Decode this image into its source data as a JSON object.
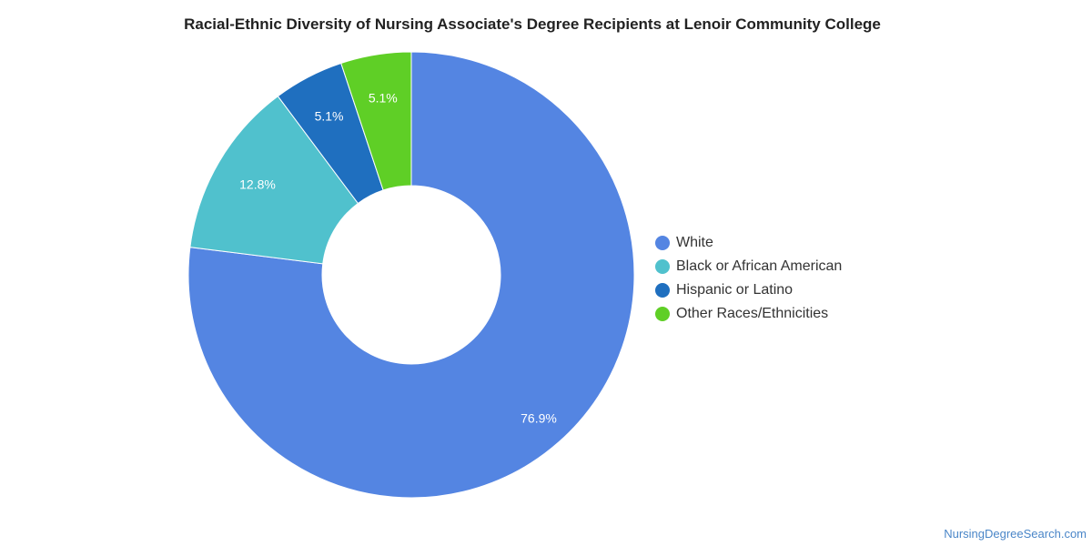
{
  "chart_data": {
    "type": "pie",
    "variant": "donut",
    "title": "Racial-Ethnic Diversity of Nursing Associate's Degree Recipients at Lenoir Community College",
    "legend_position": "right",
    "slices": [
      {
        "label": "White",
        "value": 76.9,
        "display": "76.9%",
        "color": "#5485e2"
      },
      {
        "label": "Black or African American",
        "value": 12.8,
        "display": "12.8%",
        "color": "#50c1cd"
      },
      {
        "label": "Hispanic or Latino",
        "value": 5.1,
        "display": "5.1%",
        "color": "#1f6fbf"
      },
      {
        "label": "Other Races/Ethnicities",
        "value": 5.1,
        "display": "5.1%",
        "color": "#5fcf26"
      }
    ]
  },
  "source": "NursingDegreeSearch.com"
}
